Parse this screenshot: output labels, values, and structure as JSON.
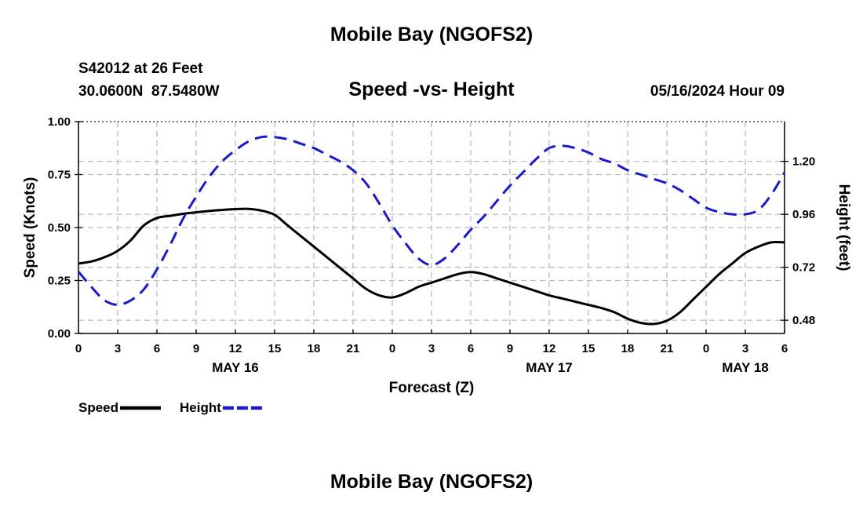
{
  "header": {
    "title": "Mobile Bay (NGOFS2)",
    "station_line": "S42012 at 26 Feet",
    "coords_line": "30.0600N  87.5480W",
    "timestamp": "05/16/2024 Hour 09"
  },
  "footer": {
    "title": "Mobile Bay (NGOFS2)"
  },
  "colors": {
    "speed": "#000000",
    "height": "#1a1acc",
    "grid": "#bbbbbb"
  },
  "chart_data": {
    "type": "line",
    "title": "Speed -vs- Height",
    "xlabel": "Forecast (Z)",
    "ylabel": "Speed (Knots)",
    "y2label": "Height (feet)",
    "x_unit": "hours from 2024-05-16 00Z",
    "xlim": [
      0,
      54
    ],
    "ylim": [
      0,
      1.0
    ],
    "y2lim": [
      0.42,
      1.38
    ],
    "grid": true,
    "x_ticks": [
      {
        "x": 0,
        "label": "0"
      },
      {
        "x": 3,
        "label": "3"
      },
      {
        "x": 6,
        "label": "6"
      },
      {
        "x": 9,
        "label": "9"
      },
      {
        "x": 12,
        "label": "12"
      },
      {
        "x": 15,
        "label": "15"
      },
      {
        "x": 18,
        "label": "18"
      },
      {
        "x": 21,
        "label": "21"
      },
      {
        "x": 24,
        "label": "0"
      },
      {
        "x": 27,
        "label": "3"
      },
      {
        "x": 30,
        "label": "6"
      },
      {
        "x": 33,
        "label": "9"
      },
      {
        "x": 36,
        "label": "12"
      },
      {
        "x": 39,
        "label": "15"
      },
      {
        "x": 42,
        "label": "18"
      },
      {
        "x": 45,
        "label": "21"
      },
      {
        "x": 48,
        "label": "0"
      },
      {
        "x": 51,
        "label": "3"
      },
      {
        "x": 54,
        "label": "6"
      }
    ],
    "date_labels": [
      {
        "x": 12,
        "label": "MAY 16"
      },
      {
        "x": 36,
        "label": "MAY 17"
      },
      {
        "x": 51,
        "label": "MAY 18"
      }
    ],
    "y_ticks": [
      {
        "value": 0.0,
        "label": "0.00"
      },
      {
        "value": 0.25,
        "label": "0.25"
      },
      {
        "value": 0.5,
        "label": "0.50"
      },
      {
        "value": 0.75,
        "label": "0.75"
      },
      {
        "value": 1.0,
        "label": "1.00"
      }
    ],
    "y2_ticks": [
      {
        "value": 0.48,
        "label": "0.48"
      },
      {
        "value": 0.72,
        "label": "0.72"
      },
      {
        "value": 0.96,
        "label": "0.96"
      },
      {
        "value": 1.2,
        "label": "1.20"
      }
    ],
    "series": [
      {
        "name": "Speed",
        "axis": "left",
        "style": "solid",
        "x": [
          0,
          1,
          2,
          3,
          4,
          5,
          6,
          7,
          8,
          9,
          10,
          11,
          12,
          13,
          14,
          15,
          16,
          17,
          18,
          19,
          20,
          21,
          22,
          23,
          24,
          25,
          26,
          27,
          28,
          29,
          30,
          31,
          32,
          33,
          34,
          35,
          36,
          37,
          38,
          39,
          40,
          41,
          42,
          43,
          44,
          45,
          46,
          47,
          48,
          49,
          50,
          51,
          52,
          53,
          54
        ],
        "values": [
          0.33,
          0.34,
          0.36,
          0.39,
          0.44,
          0.51,
          0.545,
          0.555,
          0.565,
          0.572,
          0.578,
          0.583,
          0.587,
          0.588,
          0.58,
          0.56,
          0.51,
          0.46,
          0.41,
          0.36,
          0.31,
          0.26,
          0.21,
          0.18,
          0.17,
          0.19,
          0.22,
          0.24,
          0.26,
          0.28,
          0.29,
          0.28,
          0.26,
          0.24,
          0.22,
          0.2,
          0.18,
          0.165,
          0.15,
          0.135,
          0.12,
          0.1,
          0.07,
          0.05,
          0.045,
          0.06,
          0.1,
          0.16,
          0.22,
          0.28,
          0.33,
          0.38,
          0.41,
          0.43,
          0.43
        ]
      },
      {
        "name": "Height",
        "axis": "right",
        "style": "dashed",
        "x": [
          0,
          1,
          2,
          3,
          4,
          5,
          6,
          7,
          8,
          9,
          10,
          11,
          12,
          13,
          14,
          15,
          16,
          17,
          18,
          19,
          20,
          21,
          22,
          23,
          24,
          25,
          26,
          27,
          28,
          29,
          30,
          31,
          32,
          33,
          34,
          35,
          36,
          37,
          38,
          39,
          40,
          41,
          42,
          43,
          44,
          45,
          46,
          47,
          48,
          49,
          50,
          51,
          52,
          53,
          54
        ],
        "values": [
          0.7,
          0.63,
          0.57,
          0.55,
          0.57,
          0.62,
          0.71,
          0.82,
          0.94,
          1.04,
          1.13,
          1.2,
          1.25,
          1.29,
          1.31,
          1.31,
          1.3,
          1.28,
          1.26,
          1.23,
          1.2,
          1.16,
          1.1,
          1.01,
          0.91,
          0.83,
          0.76,
          0.73,
          0.76,
          0.82,
          0.89,
          0.95,
          1.02,
          1.09,
          1.15,
          1.21,
          1.26,
          1.27,
          1.26,
          1.24,
          1.21,
          1.19,
          1.16,
          1.14,
          1.12,
          1.1,
          1.07,
          1.03,
          0.99,
          0.97,
          0.96,
          0.96,
          0.98,
          1.05,
          1.15
        ]
      }
    ],
    "legend": [
      {
        "name": "Speed",
        "style": "solid"
      },
      {
        "name": "Height",
        "style": "dashed"
      }
    ],
    "legend_position": "bottom-left"
  }
}
